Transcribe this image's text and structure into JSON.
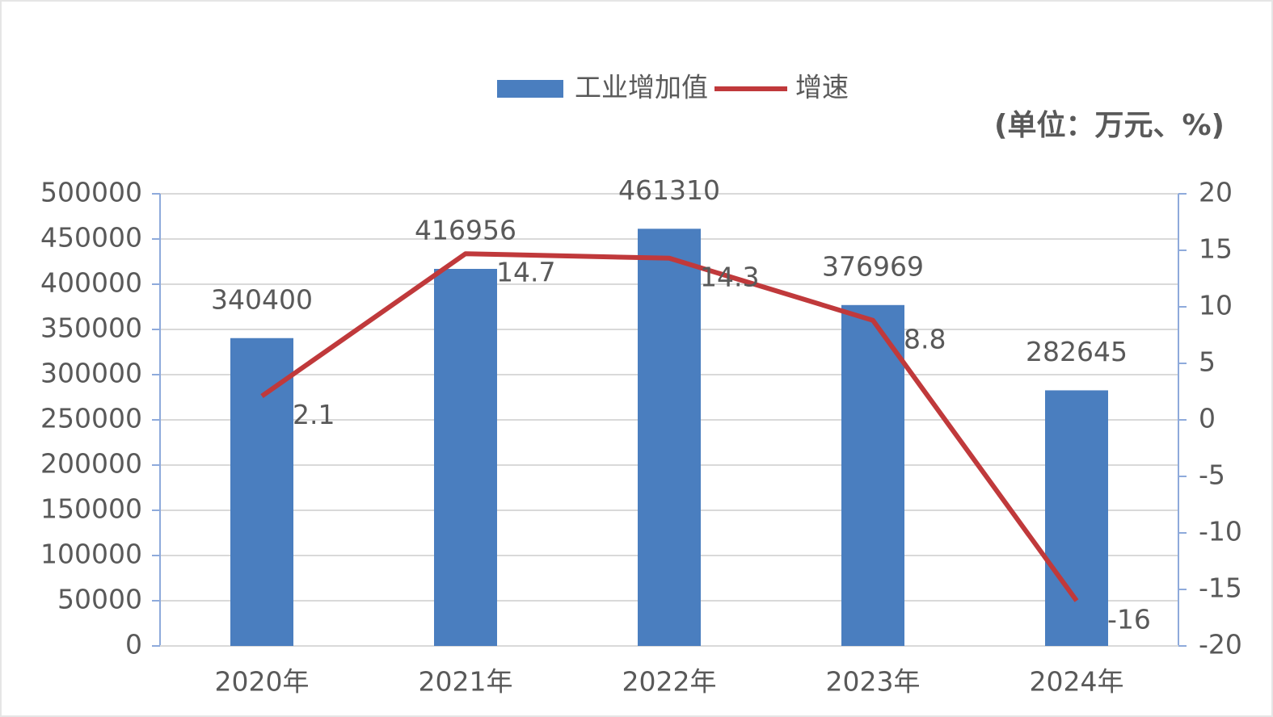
{
  "chart_data": {
    "type": "combo",
    "unit_note": "(单位：万元、%)",
    "categories": [
      "2020年",
      "2021年",
      "2022年",
      "2023年",
      "2024年"
    ],
    "series": [
      {
        "name": "工业增加值",
        "type": "bar",
        "color": "#4a7ebf",
        "values": [
          340400,
          416956,
          461310,
          376969,
          282645
        ]
      },
      {
        "name": "增速",
        "type": "line",
        "axis": "y2",
        "color": "#c0393b",
        "values": [
          2.1,
          14.7,
          14.3,
          8.8,
          -16
        ]
      }
    ],
    "ylim": [
      0,
      500000
    ],
    "yticks": [
      0,
      50000,
      100000,
      150000,
      200000,
      250000,
      300000,
      350000,
      400000,
      450000,
      500000
    ],
    "y2lim": [
      -20,
      20
    ],
    "y2ticks": [
      -20,
      -15,
      -10,
      -5,
      0,
      5,
      10,
      15,
      20
    ],
    "grid": true,
    "legend": "top"
  }
}
